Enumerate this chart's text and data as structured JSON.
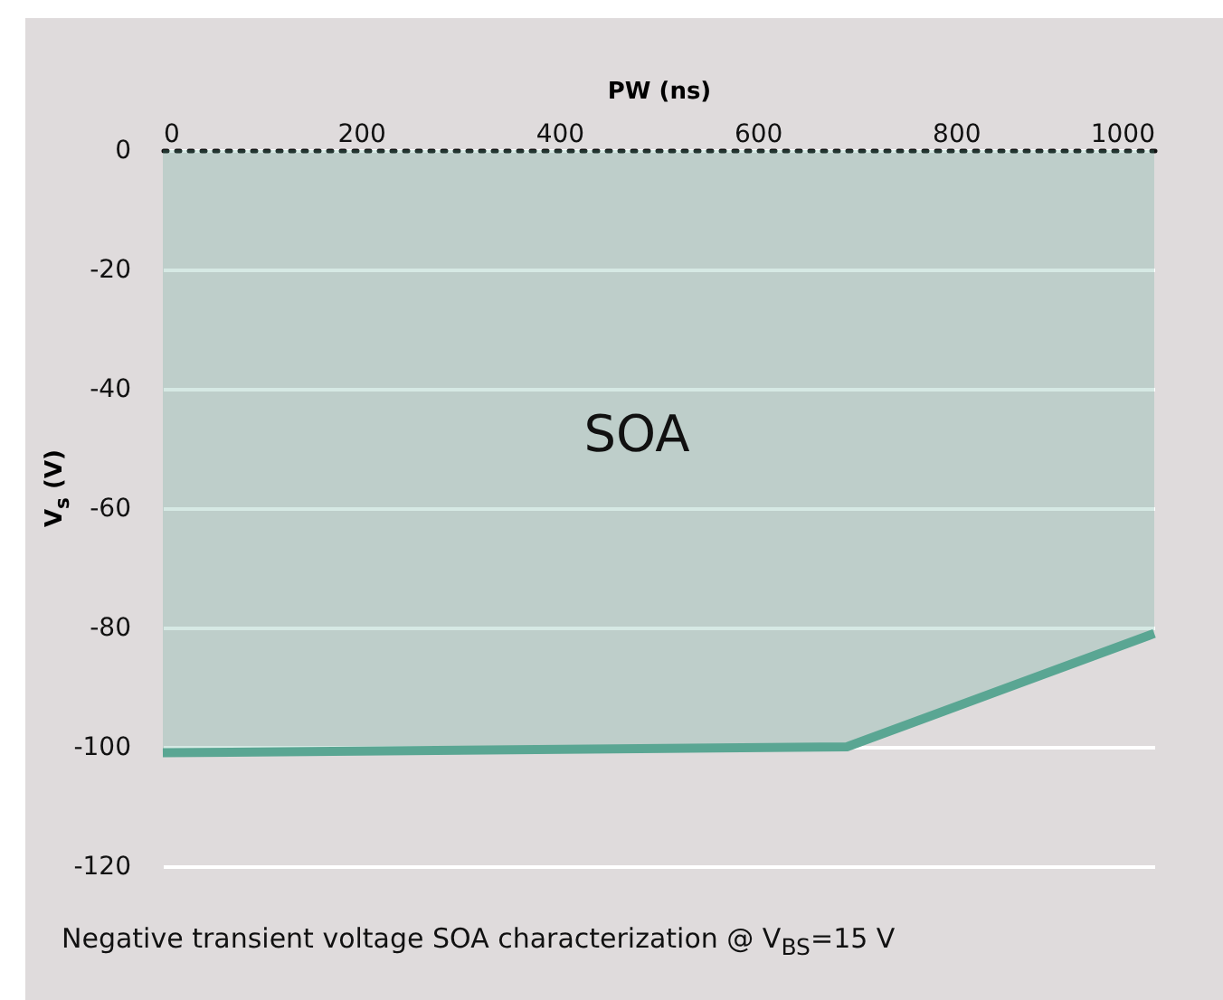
{
  "chart_data": {
    "type": "area",
    "xlabel": "PW (ns)",
    "ylabel": "V$_{s}$ (V)",
    "x": [
      0,
      690,
      1000
    ],
    "series": [
      {
        "color": "#5aa693",
        "values": [
          -101,
          -100,
          -81
        ]
      }
    ],
    "xlim": [
      0,
      1000
    ],
    "xticks": [
      0,
      200,
      400,
      600,
      800,
      1000
    ],
    "ylim": [
      -120,
      0
    ],
    "yticks": [
      0,
      -20,
      -40,
      -60,
      -80,
      -100,
      -120
    ],
    "grid": "y",
    "annotations": [
      "SOA",
      "Negative transient voltage SOA characterization @ V$_{BS}$=15 V"
    ]
  }
}
